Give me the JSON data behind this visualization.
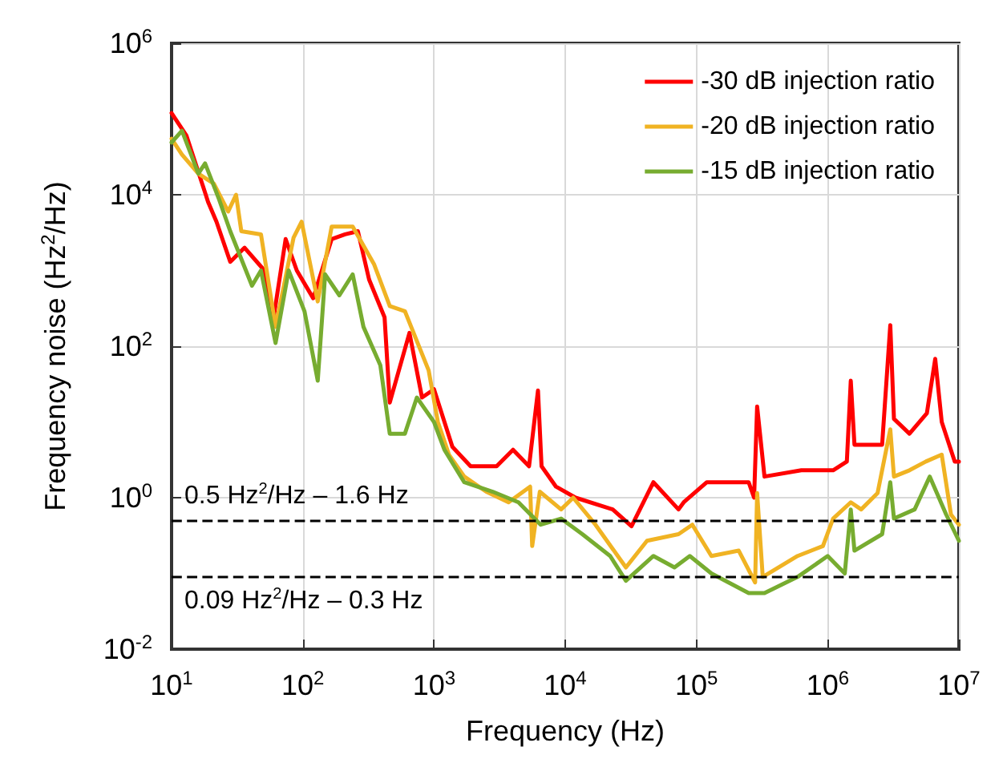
{
  "chart_data": {
    "type": "line",
    "xlabel": "Frequency (Hz)",
    "ylabel": "Frequency noise (Hz$^{2}$/Hz)",
    "log": "xy",
    "grid": true,
    "legend": "top right",
    "marker": "none",
    "line_style": "solid",
    "xlim": [
      10,
      10000000
    ],
    "ylim": [
      0.01,
      1000000
    ],
    "xticks": [
      {
        "value": 10,
        "label": "10$^{1}$"
      },
      {
        "value": 100,
        "label": "10$^{2}$"
      },
      {
        "value": 1000,
        "label": "10$^{3}$"
      },
      {
        "value": 10000,
        "label": "10$^{4}$"
      },
      {
        "value": 100000,
        "label": "10$^{5}$"
      },
      {
        "value": 1000000,
        "label": "10$^{6}$"
      },
      {
        "value": 10000000,
        "label": "10$^{7}$"
      }
    ],
    "yticks": [
      {
        "value": 0.01,
        "label": "10$^{-2}$"
      },
      {
        "value": 1,
        "label": "10$^{0}$"
      },
      {
        "value": 100,
        "label": "10$^{2}$"
      },
      {
        "value": 10000,
        "label": "10$^{4}$"
      },
      {
        "value": 1000000,
        "label": "10$^{6}$"
      }
    ],
    "ref_lines": [
      {
        "axis": "y",
        "value": 0.5,
        "label": "0.5 Hz$^{2}$/Hz – 1.6 Hz",
        "color": "#000000",
        "line_style": "dashed"
      },
      {
        "axis": "y",
        "value": 0.09,
        "label": "0.09 Hz$^{2}$/Hz – 0.3 Hz",
        "color": "#000000",
        "line_style": "dashed"
      }
    ],
    "series": [
      {
        "name": "-30 dB injection ratio",
        "color": "#ff0000",
        "x": [
          10,
          13,
          19,
          22,
          28,
          36,
          51,
          59,
          74,
          90,
          120,
          166,
          210,
          263,
          320,
          420,
          460,
          650,
          810,
          1000,
          1380,
          1900,
          3000,
          4000,
          5300,
          6200,
          6600,
          8500,
          12000,
          23000,
          32000,
          47000,
          73000,
          80000,
          120000,
          250000,
          275000,
          290000,
          330000,
          630000,
          1100000,
          1400000,
          1500000,
          1600000,
          2600000,
          3000000,
          3200000,
          4200000,
          5700000,
          6600000,
          7400000,
          9300000,
          10000000
        ],
        "values": [
          120000,
          60000,
          8000,
          4400,
          1300,
          2000,
          1000,
          200,
          2600,
          1000,
          430,
          2600,
          3000,
          3300,
          760,
          240,
          18,
          150,
          21,
          27,
          4.7,
          2.6,
          2.6,
          4.3,
          2.6,
          26,
          2.6,
          1.4,
          1,
          0.7,
          0.42,
          1.6,
          0.7,
          0.87,
          1.6,
          1.6,
          1,
          16,
          1.9,
          2.3,
          2.3,
          3,
          35,
          5,
          5,
          190,
          11,
          7,
          13,
          68,
          10,
          3,
          3
        ]
      },
      {
        "name": "-20 dB injection ratio",
        "color": "#f0b323",
        "x": [
          10,
          12,
          16,
          21,
          27,
          31,
          34,
          48,
          62,
          85,
          98,
          130,
          166,
          240,
          350,
          460,
          600,
          910,
          1070,
          1300,
          1700,
          2500,
          3700,
          5400,
          5600,
          6400,
          9300,
          11500,
          17000,
          29000,
          42000,
          73000,
          93000,
          130000,
          210000,
          280000,
          290000,
          320000,
          590000,
          920000,
          1100000,
          1500000,
          1800000,
          2400000,
          3000000,
          3200000,
          4200000,
          5600000,
          7400000,
          8700000,
          10000000
        ],
        "values": [
          55000,
          34000,
          19000,
          14000,
          6000,
          10000,
          3300,
          3000,
          180,
          2700,
          4400,
          390,
          3800,
          3800,
          1200,
          340,
          290,
          48,
          10,
          3.7,
          1.9,
          1.2,
          0.87,
          1.4,
          0.23,
          1.2,
          0.7,
          1,
          0.44,
          0.12,
          0.27,
          0.33,
          0.44,
          0.17,
          0.2,
          0.076,
          1.15,
          0.09,
          0.17,
          0.23,
          0.53,
          0.87,
          0.7,
          1.15,
          8,
          1.9,
          2.3,
          3,
          3.7,
          0.6,
          0.44
        ]
      },
      {
        "name": "-15 dB injection ratio",
        "color": "#77ac30",
        "x": [
          10,
          12,
          16,
          18,
          23,
          28,
          41,
          48,
          62,
          78,
          103,
          130,
          148,
          190,
          240,
          290,
          390,
          460,
          600,
          740,
          1000,
          1200,
          1700,
          2800,
          4400,
          6500,
          9300,
          13500,
          22000,
          29000,
          47000,
          68000,
          89000,
          130000,
          250000,
          330000,
          590000,
          1000000,
          1350000,
          1500000,
          1600000,
          2600000,
          3000000,
          3200000,
          4600000,
          6000000,
          8000000,
          10000000
        ],
        "values": [
          49000,
          70000,
          19000,
          26000,
          8700,
          3300,
          630,
          1000,
          110,
          1000,
          290,
          35,
          890,
          470,
          890,
          180,
          56,
          7,
          7,
          21,
          10,
          4.3,
          1.6,
          1.2,
          0.87,
          0.44,
          0.53,
          0.33,
          0.17,
          0.08,
          0.17,
          0.12,
          0.17,
          0.1,
          0.055,
          0.055,
          0.09,
          0.17,
          0.1,
          0.7,
          0.2,
          0.33,
          1.6,
          0.53,
          0.7,
          1.9,
          0.6,
          0.27
        ]
      }
    ]
  }
}
